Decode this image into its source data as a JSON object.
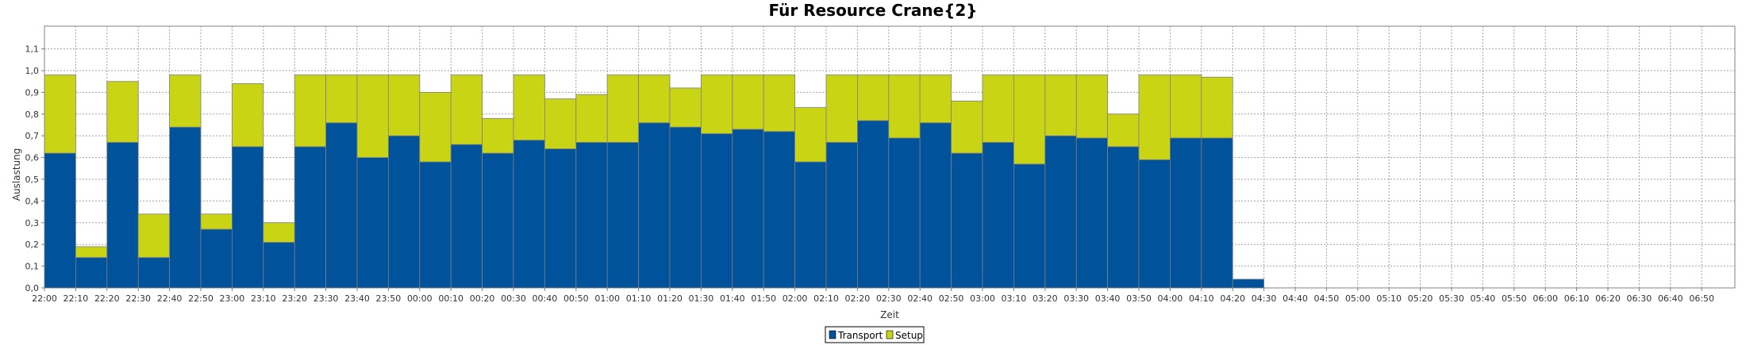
{
  "chart_data": {
    "type": "bar",
    "stacked": true,
    "title": "Für Resource Crane{2}",
    "xlabel": "Zeit",
    "ylabel": "Auslastung",
    "ylim": [
      0,
      1.2
    ],
    "yticks": [
      "0,0",
      "0,1",
      "0,2",
      "0,3",
      "0,4",
      "0,5",
      "0,6",
      "0,7",
      "0,8",
      "0,9",
      "1,0",
      "1,1"
    ],
    "grid": true,
    "legend_position": "bottom",
    "categories": [
      "22:00",
      "22:10",
      "22:20",
      "22:30",
      "22:40",
      "22:50",
      "23:00",
      "23:10",
      "23:20",
      "23:30",
      "23:40",
      "23:50",
      "00:00",
      "00:10",
      "00:20",
      "00:30",
      "00:40",
      "00:50",
      "01:00",
      "01:10",
      "01:20",
      "01:30",
      "01:40",
      "01:50",
      "02:00",
      "02:10",
      "02:20",
      "02:30",
      "02:40",
      "02:50",
      "03:00",
      "03:10",
      "03:20",
      "03:30",
      "03:40",
      "03:50",
      "04:00",
      "04:10",
      "04:20",
      "04:30",
      "04:40",
      "04:50",
      "05:00",
      "05:10",
      "05:20",
      "05:30",
      "05:40",
      "05:50",
      "06:00",
      "06:10",
      "06:20",
      "06:30",
      "06:40",
      "06:50"
    ],
    "series": [
      {
        "name": "Transport",
        "color": "#00529b",
        "values": [
          0.62,
          0.14,
          0.67,
          0.14,
          0.74,
          0.27,
          0.65,
          0.21,
          0.65,
          0.76,
          0.6,
          0.7,
          0.58,
          0.66,
          0.62,
          0.68,
          0.64,
          0.67,
          0.67,
          0.76,
          0.74,
          0.71,
          0.73,
          0.72,
          0.58,
          0.67,
          0.77,
          0.69,
          0.76,
          0.62,
          0.67,
          0.57,
          0.7,
          0.69,
          0.65,
          0.59,
          0.69,
          0.69,
          0.04,
          0,
          0,
          0,
          0,
          0,
          0,
          0,
          0,
          0,
          0,
          0,
          0,
          0,
          0,
          0
        ]
      },
      {
        "name": "Setup",
        "color": "#c8d414",
        "values": [
          0.36,
          0.05,
          0.28,
          0.2,
          0.24,
          0.07,
          0.29,
          0.09,
          0.33,
          0.22,
          0.38,
          0.28,
          0.32,
          0.32,
          0.16,
          0.3,
          0.23,
          0.22,
          0.31,
          0.22,
          0.18,
          0.27,
          0.25,
          0.26,
          0.25,
          0.31,
          0.21,
          0.29,
          0.22,
          0.24,
          0.31,
          0.41,
          0.28,
          0.29,
          0.15,
          0.39,
          0.29,
          0.28,
          0,
          0,
          0,
          0,
          0,
          0,
          0,
          0,
          0,
          0,
          0,
          0,
          0,
          0,
          0,
          0
        ]
      }
    ]
  }
}
